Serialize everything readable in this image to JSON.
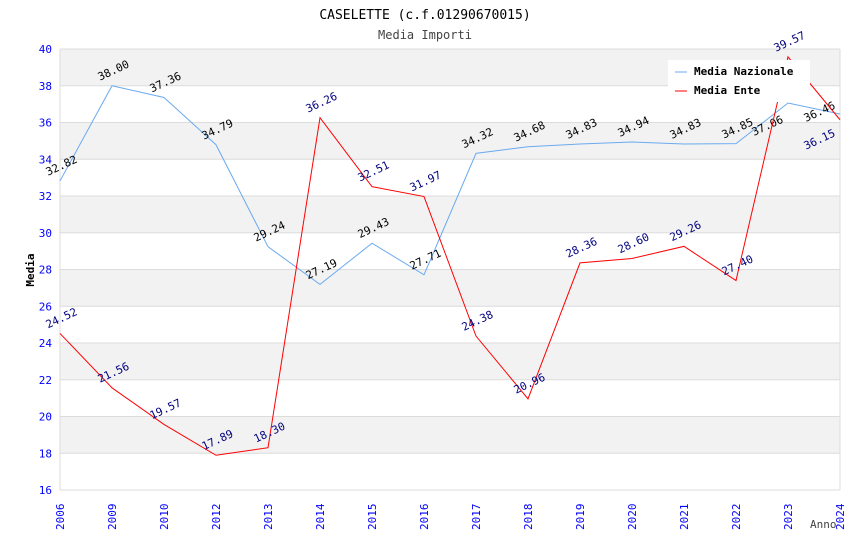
{
  "chart_data": {
    "type": "line",
    "title": "CASELETTE (c.f.01290670015)",
    "subtitle": "Media Importi",
    "xlabel": "Anno",
    "ylabel": "Media",
    "ylim": [
      16,
      40
    ],
    "yticks": [
      16,
      18,
      20,
      22,
      24,
      26,
      28,
      30,
      32,
      34,
      36,
      38,
      40
    ],
    "categories": [
      "2006",
      "2009",
      "2010",
      "2012",
      "2013",
      "2014",
      "2015",
      "2016",
      "2017",
      "2018",
      "2019",
      "2020",
      "2021",
      "2022",
      "2023",
      "2024"
    ],
    "legend_position": "top-right",
    "series": [
      {
        "name": "Media Nazionale",
        "color": "#6aaaf0",
        "label_color": "#000000",
        "values": [
          32.82,
          38.0,
          37.36,
          34.79,
          29.24,
          27.19,
          29.43,
          27.71,
          34.32,
          34.68,
          34.83,
          34.94,
          34.83,
          34.85,
          37.06,
          36.46
        ]
      },
      {
        "name": "Media Ente",
        "color": "#ff0000",
        "label_color": "#000080",
        "values": [
          24.52,
          21.56,
          19.57,
          17.89,
          18.3,
          36.26,
          32.51,
          31.97,
          24.38,
          20.96,
          28.36,
          28.6,
          29.26,
          27.4,
          39.57,
          36.15
        ]
      }
    ]
  }
}
